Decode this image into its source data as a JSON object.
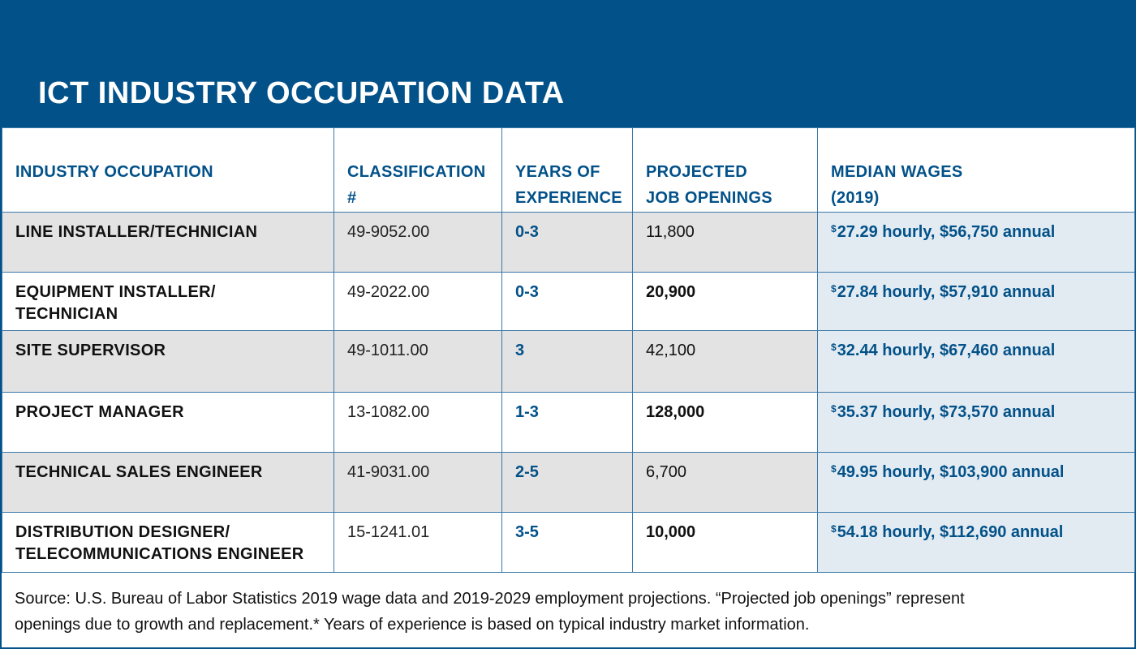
{
  "title": "ICT INDUSTRY OCCUPATION DATA",
  "colors": {
    "header_bg": "#025189",
    "accent": "#025189",
    "row_gray": "#e3e3e3",
    "wage_bg": "#e3ebf2"
  },
  "columns": [
    {
      "l1": "INDUSTRY OCCUPATION",
      "l2": ""
    },
    {
      "l1": "CLASSIFICATION",
      "l2": "#"
    },
    {
      "l1": "YEARS OF",
      "l2": "EXPERIENCE"
    },
    {
      "l1": "PROJECTED",
      "l2": "JOB OPENINGS"
    },
    {
      "l1": "MEDIAN WAGES",
      "l2": "(2019)"
    }
  ],
  "rows": [
    {
      "occ1": "LINE INSTALLER/TECHNICIAN",
      "occ2": "",
      "classification": "49-9052.00",
      "experience": "0-3",
      "openings": "11,800",
      "wage_sym": "$",
      "wage": "27.29 hourly, $56,750 annual"
    },
    {
      "occ1": "EQUIPMENT INSTALLER/",
      "occ2": "TECHNICIAN",
      "classification": "49-2022.00",
      "experience": "0-3",
      "openings": "20,900",
      "wage_sym": "$",
      "wage": "27.84 hourly, $57,910 annual"
    },
    {
      "occ1": "SITE SUPERVISOR",
      "occ2": "",
      "classification": "49-1011.00",
      "experience": "3",
      "openings": "42,100",
      "wage_sym": "$",
      "wage": "32.44 hourly, $67,460 annual"
    },
    {
      "occ1": "PROJECT MANAGER",
      "occ2": "",
      "classification": "13-1082.00",
      "experience": "1-3",
      "openings": "128,000",
      "wage_sym": "$",
      "wage": "35.37 hourly, $73,570 annual"
    },
    {
      "occ1": "TECHNICAL SALES ENGINEER",
      "occ2": "",
      "classification": "41-9031.00",
      "experience": "2-5",
      "openings": "6,700",
      "wage_sym": "$",
      "wage": "49.95 hourly, $103,900 annual"
    },
    {
      "occ1": "DISTRIBUTION DESIGNER/",
      "occ2": "TELECOMMUNICATIONS ENGINEER",
      "classification": "15-1241.01",
      "experience": "3-5",
      "openings": "10,000",
      "wage_sym": "$",
      "wage": "54.18 hourly, $112,690 annual"
    }
  ],
  "source": {
    "line1": "Source: U.S. Bureau of Labor Statistics 2019 wage data and 2019-2029 employment projections. “Projected job openings” represent",
    "line2": "openings due to growth and replacement.* Years of experience is based on typical industry market information."
  }
}
